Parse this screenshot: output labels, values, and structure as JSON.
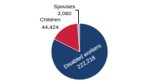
{
  "chart_data": {
    "type": "pie",
    "categories": [
      "Disabled workers",
      "Children",
      "Spouses"
    ],
    "values": [
      222218,
      44424,
      3060
    ],
    "value_labels": [
      "222,218",
      "44,424",
      "3,060"
    ],
    "data_labels": true,
    "colors": [
      "#1b3f6e",
      "#cc1f3b",
      "#8fa8be"
    ]
  }
}
